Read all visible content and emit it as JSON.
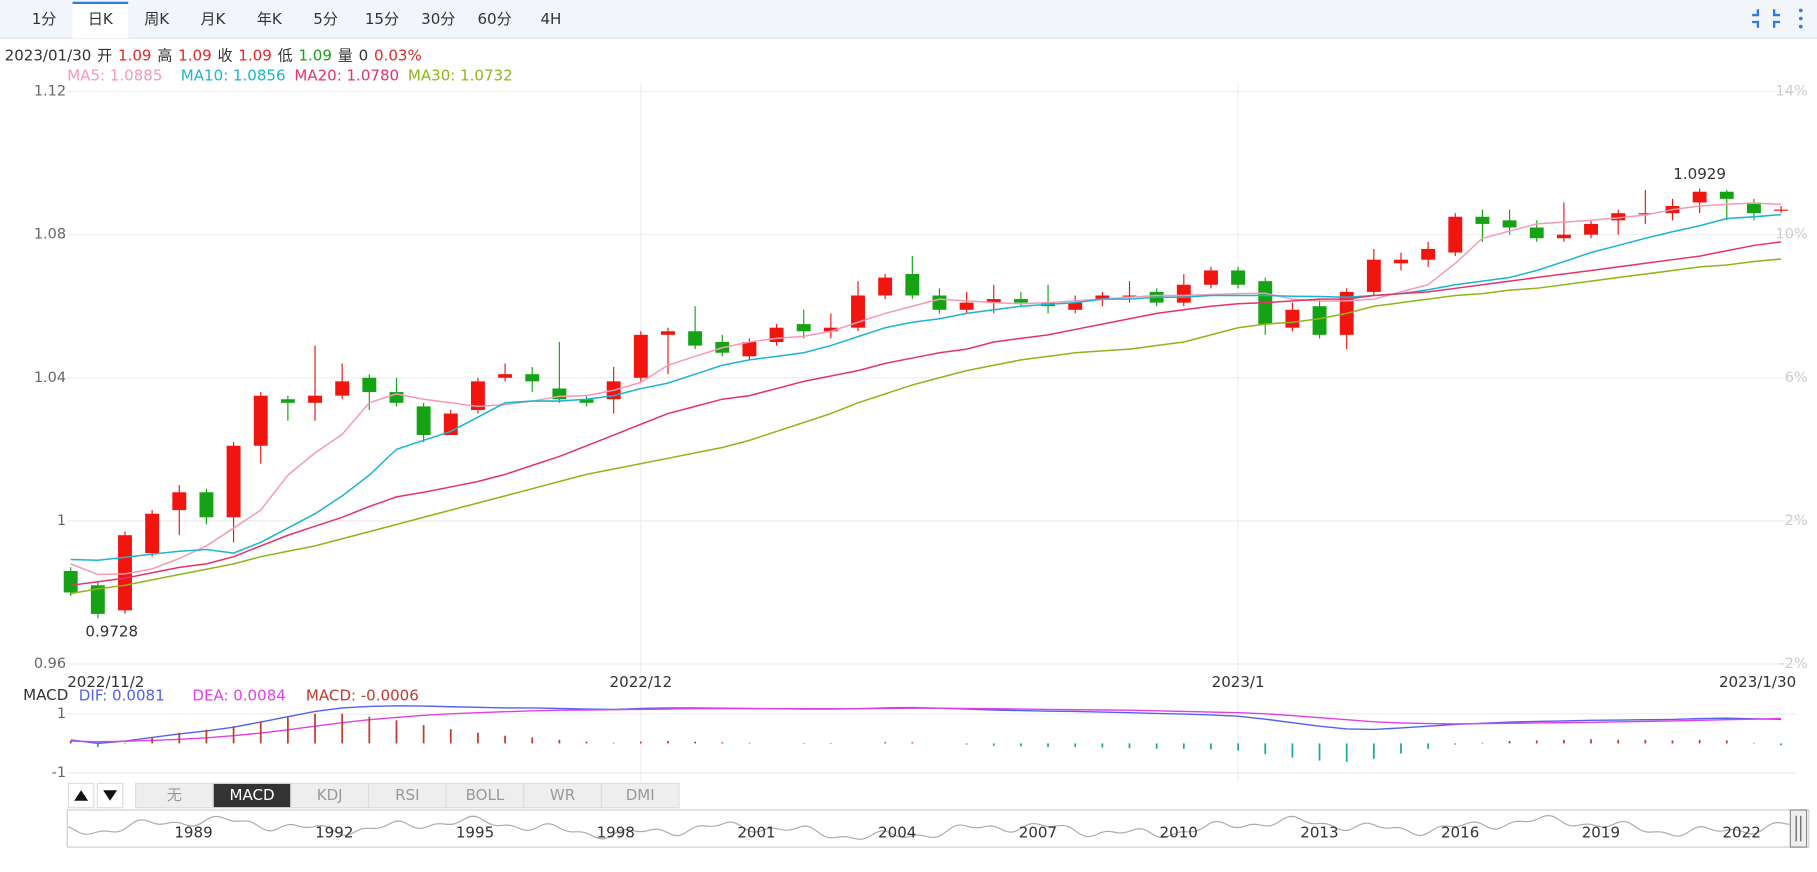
{
  "toolbar": {
    "tabs": [
      "1分",
      "日K",
      "周K",
      "月K",
      "年K",
      "5分",
      "15分",
      "30分",
      "60分",
      "4H"
    ],
    "active": 1
  },
  "info": {
    "date": "2023/01/30",
    "fields": [
      {
        "label": "开",
        "value": "1.09",
        "color": "#e4262b"
      },
      {
        "label": "高",
        "value": "1.09",
        "color": "#e4262b"
      },
      {
        "label": "收",
        "value": "1.09",
        "color": "#e4262b"
      },
      {
        "label": "低",
        "value": "1.09",
        "color": "#1a9e1a"
      },
      {
        "label": "量",
        "value": "0",
        "color": "#333333"
      }
    ],
    "change": "0.03%",
    "change_color": "#e4262b"
  },
  "indicator_tabs": {
    "tabs": [
      "无",
      "MACD",
      "KDJ",
      "RSI",
      "BOLL",
      "WR",
      "DMI"
    ],
    "active": 1
  },
  "navigator": {
    "years": [
      "1989",
      "1992",
      "1995",
      "1998",
      "2001",
      "2004",
      "2007",
      "2010",
      "2013",
      "2016",
      "2019",
      "2022"
    ]
  },
  "chart_data": [
    {
      "type": "candlestick",
      "categories": [
        "2022/11/2",
        null,
        null,
        null,
        null,
        null,
        null,
        null,
        null,
        null,
        null,
        null,
        null,
        null,
        null,
        null,
        null,
        null,
        null,
        null,
        null,
        "2022/12",
        null,
        null,
        null,
        null,
        null,
        null,
        null,
        null,
        null,
        null,
        null,
        null,
        null,
        null,
        null,
        null,
        null,
        null,
        null,
        null,
        null,
        "2023/1",
        null,
        null,
        null,
        null,
        null,
        null,
        null,
        null,
        null,
        null,
        null,
        null,
        null,
        null,
        null,
        null,
        null,
        null,
        null,
        "2023/1/30"
      ],
      "open": [
        0.986,
        0.982,
        0.975,
        0.991,
        1.003,
        1.008,
        1.001,
        1.021,
        1.034,
        1.033,
        1.035,
        1.04,
        1.036,
        1.032,
        1.024,
        1.031,
        1.04,
        1.041,
        1.037,
        1.034,
        1.034,
        1.04,
        1.052,
        1.053,
        1.05,
        1.046,
        1.05,
        1.055,
        1.053,
        1.054,
        1.063,
        1.069,
        1.063,
        1.059,
        1.061,
        1.062,
        1.061,
        1.059,
        1.062,
        1.063,
        1.064,
        1.061,
        1.066,
        1.07,
        1.067,
        1.054,
        1.06,
        1.052,
        1.064,
        1.072,
        1.073,
        1.075,
        1.085,
        1.084,
        1.082,
        1.079,
        1.08,
        1.084,
        1.086,
        1.086,
        1.089,
        1.092,
        1.089,
        1.087
      ],
      "high": [
        0.987,
        0.983,
        0.997,
        1.003,
        1.01,
        1.009,
        1.022,
        1.036,
        1.035,
        1.049,
        1.044,
        1.041,
        1.04,
        1.033,
        1.031,
        1.04,
        1.044,
        1.043,
        1.05,
        1.035,
        1.043,
        1.053,
        1.054,
        1.06,
        1.052,
        1.051,
        1.055,
        1.059,
        1.058,
        1.067,
        1.069,
        1.074,
        1.065,
        1.064,
        1.066,
        1.064,
        1.066,
        1.063,
        1.064,
        1.067,
        1.065,
        1.069,
        1.071,
        1.071,
        1.068,
        1.061,
        1.062,
        1.065,
        1.076,
        1.075,
        1.078,
        1.086,
        1.087,
        1.087,
        1.084,
        1.089,
        1.084,
        1.087,
        1.0925,
        1.09,
        1.0929,
        1.0925,
        1.09,
        1.088
      ],
      "low": [
        0.979,
        0.9728,
        0.974,
        0.99,
        0.996,
        0.999,
        0.994,
        1.016,
        1.028,
        1.028,
        1.034,
        1.031,
        1.032,
        1.022,
        1.024,
        1.03,
        1.039,
        1.036,
        1.033,
        1.032,
        1.03,
        1.039,
        1.041,
        1.048,
        1.046,
        1.045,
        1.049,
        1.051,
        1.051,
        1.053,
        1.062,
        1.062,
        1.058,
        1.058,
        1.058,
        1.06,
        1.058,
        1.058,
        1.06,
        1.061,
        1.06,
        1.06,
        1.065,
        1.065,
        1.052,
        1.053,
        1.051,
        1.048,
        1.063,
        1.07,
        1.071,
        1.074,
        1.078,
        1.08,
        1.078,
        1.078,
        1.079,
        1.08,
        1.083,
        1.084,
        1.086,
        1.084,
        1.084,
        1.086
      ],
      "close": [
        0.98,
        0.974,
        0.996,
        1.002,
        1.008,
        1.001,
        1.021,
        1.035,
        1.033,
        1.035,
        1.039,
        1.036,
        1.033,
        1.024,
        1.03,
        1.039,
        1.041,
        1.039,
        1.034,
        1.033,
        1.039,
        1.052,
        1.053,
        1.049,
        1.047,
        1.05,
        1.054,
        1.053,
        1.054,
        1.063,
        1.068,
        1.063,
        1.059,
        1.061,
        1.062,
        1.061,
        1.06,
        1.061,
        1.063,
        1.063,
        1.061,
        1.066,
        1.07,
        1.066,
        1.055,
        1.059,
        1.052,
        1.064,
        1.073,
        1.073,
        1.076,
        1.085,
        1.083,
        1.082,
        1.079,
        1.08,
        1.083,
        1.086,
        1.086,
        1.088,
        1.092,
        1.09,
        1.086,
        1.087
      ],
      "up_color": "#f0150f",
      "down_color": "#15a315",
      "series": [
        {
          "name": "MA5:",
          "color": "#f49ab4",
          "values": [
            0.988,
            0.985,
            0.9852,
            0.9866,
            0.9895,
            0.993,
            0.998,
            1.003,
            1.0128,
            1.019,
            1.0242,
            1.033,
            1.0355,
            1.034,
            1.033,
            1.032,
            1.0325,
            1.0335,
            1.0348,
            1.035,
            1.0365,
            1.0387,
            1.0435,
            1.046,
            1.0484,
            1.05,
            1.051,
            1.0516,
            1.053,
            1.0555,
            1.058,
            1.06,
            1.062,
            1.0615,
            1.061,
            1.0607,
            1.061,
            1.0615,
            1.062,
            1.0625,
            1.063,
            1.063,
            1.0633,
            1.0635,
            1.0636,
            1.062,
            1.0614,
            1.0615,
            1.062,
            1.064,
            1.066,
            1.072,
            1.079,
            1.081,
            1.083,
            1.0835,
            1.084,
            1.0847,
            1.0855,
            1.087,
            1.088,
            1.0885,
            1.0888,
            1.0885
          ]
        },
        {
          "name": "MA10:",
          "color": "#1bb4d3",
          "values": [
            0.9892,
            0.989,
            0.9898,
            0.9907,
            0.9915,
            0.992,
            0.991,
            0.994,
            0.998,
            1.002,
            1.007,
            1.0128,
            1.02,
            1.0225,
            1.025,
            1.029,
            1.033,
            1.0335,
            1.0335,
            1.034,
            1.035,
            1.037,
            1.0385,
            1.041,
            1.0435,
            1.045,
            1.046,
            1.047,
            1.049,
            1.0515,
            1.054,
            1.0555,
            1.0565,
            1.058,
            1.059,
            1.06,
            1.0605,
            1.061,
            1.062,
            1.062,
            1.0625,
            1.0625,
            1.063,
            1.063,
            1.063,
            1.0628,
            1.0627,
            1.0625,
            1.063,
            1.0635,
            1.0646,
            1.066,
            1.067,
            1.068,
            1.07,
            1.0725,
            1.075,
            1.077,
            1.079,
            1.0808,
            1.0825,
            1.0845,
            1.085,
            1.0856
          ]
        },
        {
          "name": "MA20:",
          "color": "#e5336a",
          "values": [
            0.982,
            0.983,
            0.984,
            0.9855,
            0.987,
            0.988,
            0.99,
            0.993,
            0.996,
            0.9985,
            1.001,
            1.004,
            1.0067,
            1.008,
            1.0095,
            1.011,
            1.013,
            1.0155,
            1.018,
            1.021,
            1.024,
            1.027,
            1.03,
            1.032,
            1.034,
            1.035,
            1.037,
            1.039,
            1.0405,
            1.042,
            1.044,
            1.0455,
            1.047,
            1.048,
            1.05,
            1.051,
            1.052,
            1.0535,
            1.055,
            1.0565,
            1.058,
            1.059,
            1.06,
            1.0607,
            1.061,
            1.0615,
            1.062,
            1.062,
            1.063,
            1.0635,
            1.064,
            1.065,
            1.066,
            1.067,
            1.068,
            1.069,
            1.07,
            1.071,
            1.072,
            1.073,
            1.074,
            1.0755,
            1.077,
            1.078
          ],
          "value_labels": [
            null,
            null,
            null,
            null,
            null,
            null,
            null,
            null,
            null,
            null,
            null,
            null,
            null,
            null,
            null,
            null,
            null,
            null,
            null,
            null,
            null,
            null,
            null,
            null,
            null,
            null,
            null,
            null,
            null,
            null,
            null,
            null,
            null,
            null,
            null,
            null,
            null,
            null,
            null,
            null,
            null,
            null,
            null,
            null,
            null,
            null,
            null,
            null,
            null,
            null,
            null,
            null,
            null,
            null,
            null,
            null,
            null,
            null,
            null,
            null,
            null,
            null,
            null,
            "1.0780"
          ]
        },
        {
          "name": "MA30:",
          "color": "#8fb51a",
          "values": [
            0.9797,
            0.981,
            0.982,
            0.9835,
            0.985,
            0.9865,
            0.988,
            0.99,
            0.9915,
            0.993,
            0.995,
            0.997,
            0.999,
            1.001,
            1.003,
            1.005,
            1.007,
            1.009,
            1.011,
            1.013,
            1.0145,
            1.016,
            1.0175,
            1.019,
            1.0205,
            1.0225,
            1.025,
            1.0275,
            1.03,
            1.033,
            1.0355,
            1.038,
            1.04,
            1.042,
            1.0435,
            1.045,
            1.046,
            1.047,
            1.0475,
            1.048,
            1.049,
            1.05,
            1.052,
            1.054,
            1.055,
            1.0555,
            1.0565,
            1.058,
            1.06,
            1.061,
            1.062,
            1.063,
            1.0635,
            1.0645,
            1.065,
            1.066,
            1.067,
            1.068,
            1.069,
            1.07,
            1.071,
            1.0715,
            1.0725,
            1.0732
          ]
        }
      ],
      "ylim": [
        0.96,
        1.12
      ],
      "yticks": [
        0.96,
        1,
        1.04,
        1.08,
        1.12
      ],
      "y2lim": [
        -2,
        14
      ],
      "y2ticks": [
        {
          "value": -2,
          "label": "-2%"
        },
        {
          "value": 2,
          "label": "2%"
        },
        {
          "value": 6,
          "label": "6%"
        },
        {
          "value": 10,
          "label": "10%"
        },
        {
          "value": 14,
          "label": "14%"
        }
      ],
      "grid": true
    },
    {
      "type": "macd",
      "title": "MACD",
      "series": [
        {
          "name": "DIF:",
          "color": "#5561ee",
          "style": "line",
          "values": [
            0.0012,
            0.0,
            0.0008,
            0.002,
            0.0032,
            0.0042,
            0.0055,
            0.0072,
            0.009,
            0.0108,
            0.012,
            0.0125,
            0.0127,
            0.0126,
            0.0124,
            0.0122,
            0.012,
            0.012,
            0.0118,
            0.0116,
            0.0115,
            0.0118,
            0.012,
            0.012,
            0.0119,
            0.0118,
            0.0117,
            0.0116,
            0.0116,
            0.0117,
            0.012,
            0.0121,
            0.0119,
            0.0116,
            0.0113,
            0.0111,
            0.0109,
            0.0108,
            0.0106,
            0.0104,
            0.0101,
            0.0099,
            0.0096,
            0.0092,
            0.0082,
            0.007,
            0.0058,
            0.0049,
            0.0047,
            0.0052,
            0.0058,
            0.0064,
            0.0068,
            0.0072,
            0.0074,
            0.0076,
            0.0078,
            0.0079,
            0.008,
            0.0081,
            0.0084,
            0.0085,
            0.0083,
            0.0081
          ]
        },
        {
          "name": "DEA:",
          "color": "#e040e8",
          "style": "line",
          "values": [
            0.0008,
            0.0006,
            0.0007,
            0.001,
            0.0014,
            0.0019,
            0.0026,
            0.0035,
            0.0046,
            0.0058,
            0.007,
            0.008,
            0.0088,
            0.0095,
            0.01,
            0.0104,
            0.0107,
            0.011,
            0.0112,
            0.0113,
            0.0114,
            0.0115,
            0.0116,
            0.0117,
            0.0117,
            0.0117,
            0.0117,
            0.0117,
            0.0117,
            0.0117,
            0.0118,
            0.0119,
            0.0119,
            0.0118,
            0.0117,
            0.0116,
            0.0115,
            0.0114,
            0.0113,
            0.0112,
            0.011,
            0.0108,
            0.0106,
            0.0104,
            0.01,
            0.0094,
            0.0087,
            0.008,
            0.0073,
            0.0069,
            0.0067,
            0.0066,
            0.0067,
            0.0068,
            0.0069,
            0.007,
            0.0071,
            0.0073,
            0.0074,
            0.0076,
            0.0078,
            0.008,
            0.0082,
            0.0084
          ]
        },
        {
          "name": "MACD:",
          "color": "#c23a2e",
          "style": "bar",
          "down_color": "#19a89a",
          "values": [
            0.0008,
            -0.0012,
            0.0002,
            0.002,
            0.0036,
            0.0046,
            0.0058,
            0.0074,
            0.0088,
            0.01,
            0.01,
            0.009,
            0.0078,
            0.0062,
            0.0048,
            0.0036,
            0.0026,
            0.002,
            0.0012,
            0.0006,
            0.0002,
            0.0006,
            0.0008,
            0.0006,
            0.0004,
            0.0002,
            0.0,
            -0.0002,
            -0.0002,
            0.0,
            0.0004,
            0.0004,
            0.0,
            -0.0004,
            -0.0008,
            -0.001,
            -0.0012,
            -0.0012,
            -0.0014,
            -0.0016,
            -0.0018,
            -0.0018,
            -0.002,
            -0.0024,
            -0.0036,
            -0.0048,
            -0.0058,
            -0.0062,
            -0.0052,
            -0.0034,
            -0.0018,
            -0.0004,
            0.0002,
            0.0008,
            0.001,
            0.0012,
            0.0014,
            0.0012,
            0.0012,
            0.001,
            0.0012,
            0.001,
            0.0002,
            -0.0006
          ]
        }
      ],
      "ylim": [
        -0.0131,
        0.0143
      ],
      "yticks": [
        {
          "value": -0.01,
          "label": "-1"
        },
        {
          "value": 0.01,
          "label": "1"
        }
      ]
    }
  ]
}
